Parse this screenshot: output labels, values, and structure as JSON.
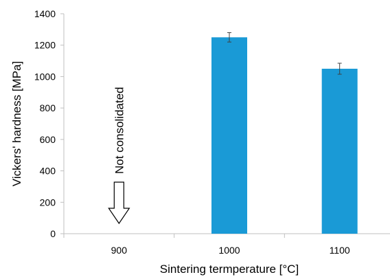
{
  "chart_data": {
    "type": "bar",
    "title": "",
    "xlabel": "Sintering termperature [°C]",
    "ylabel": "Vickers' hardness [MPa]",
    "categories": [
      "900",
      "1000",
      "1100"
    ],
    "values": [
      null,
      1250,
      1050
    ],
    "error": [
      null,
      30,
      35
    ],
    "ylim": [
      0,
      1400
    ],
    "yticks": [
      "0",
      "200",
      "400",
      "600",
      "800",
      "1000",
      "1200",
      "1400"
    ],
    "bar_color": "#1a9ad6",
    "grid": false,
    "annotation": {
      "text": "Not consolidated",
      "category": "900",
      "arrow_direction": "down"
    }
  }
}
